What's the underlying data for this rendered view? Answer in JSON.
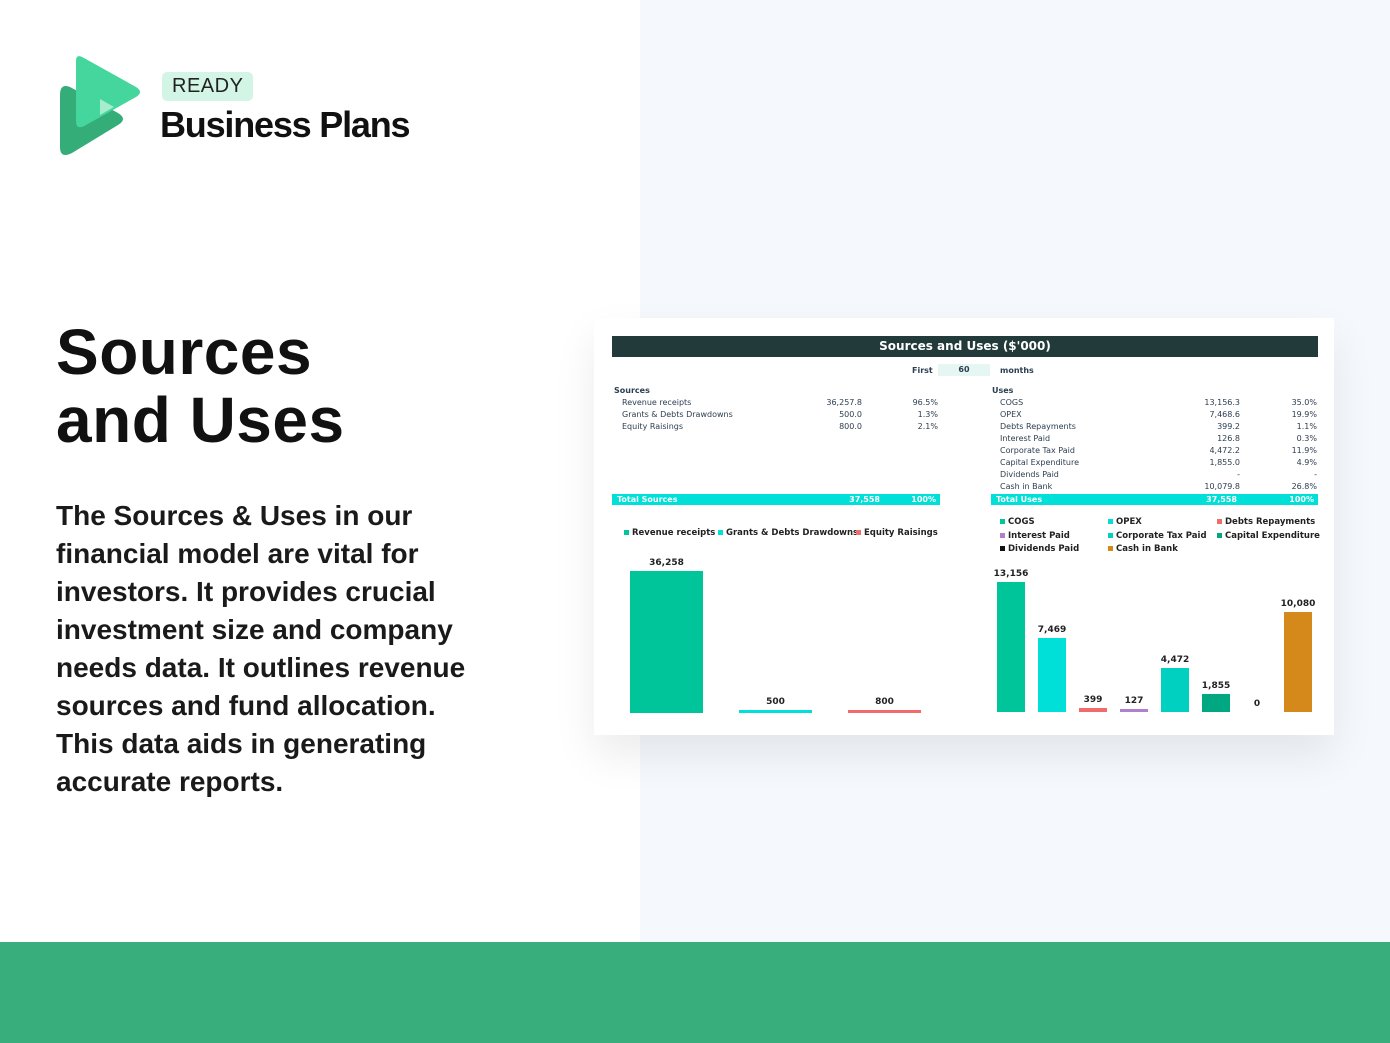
{
  "brand": {
    "badge": "READY",
    "name": "Business Plans"
  },
  "heading": {
    "line1": "Sources",
    "line2": "and Uses"
  },
  "description": "The Sources & Uses in our financial model are vital for investors. It provides crucial investment size and company needs data. It outlines revenue sources and fund allocation. This data aids in generating accurate reports.",
  "sheet": {
    "title": "Sources and Uses ($'000)",
    "period": {
      "first_label": "First",
      "value": "60",
      "unit": "months"
    },
    "sources": {
      "heading": "Sources",
      "rows": [
        {
          "label": "Revenue receipts",
          "value": "36,257.8",
          "pct": "96.5%"
        },
        {
          "label": "Grants & Debts Drawdowns",
          "value": "500.0",
          "pct": "1.3%"
        },
        {
          "label": "Equity Raisings",
          "value": "800.0",
          "pct": "2.1%"
        }
      ],
      "total": {
        "label": "Total Sources",
        "value": "37,558",
        "pct": "100%"
      }
    },
    "uses": {
      "heading": "Uses",
      "rows": [
        {
          "label": "COGS",
          "value": "13,156.3",
          "pct": "35.0%"
        },
        {
          "label": "OPEX",
          "value": "7,468.6",
          "pct": "19.9%"
        },
        {
          "label": "Debts Repayments",
          "value": "399.2",
          "pct": "1.1%"
        },
        {
          "label": "Interest Paid",
          "value": "126.8",
          "pct": "0.3%"
        },
        {
          "label": "Corporate Tax Paid",
          "value": "4,472.2",
          "pct": "11.9%"
        },
        {
          "label": "Capital Expenditure",
          "value": "1,855.0",
          "pct": "4.9%"
        },
        {
          "label": "Dividends Paid",
          "value": "-",
          "pct": "-"
        },
        {
          "label": "Cash in Bank",
          "value": "10,079.8",
          "pct": "26.8%"
        }
      ],
      "total": {
        "label": "Total Uses",
        "value": "37,558",
        "pct": "100%"
      }
    }
  },
  "chart_data": [
    {
      "type": "bar",
      "categories": [
        "Revenue receipts",
        "Grants & Debts Drawdowns",
        "Equity Raisings"
      ],
      "values": [
        36258,
        500,
        800
      ],
      "labels": [
        "36,258",
        "500",
        "800"
      ],
      "colors": [
        "#00c49a",
        "#00dfd8",
        "#f26b6b"
      ],
      "legend": "top"
    },
    {
      "type": "bar",
      "categories": [
        "COGS",
        "OPEX",
        "Debts Repayments",
        "Interest Paid",
        "Corporate Tax Paid",
        "Capital Expenditure",
        "Dividends Paid",
        "Cash in Bank"
      ],
      "values": [
        13156,
        7469,
        399,
        127,
        4472,
        1855,
        0,
        10080
      ],
      "labels": [
        "13,156",
        "7,469",
        "399",
        "127",
        "4,472",
        "1,855",
        "0",
        "10,080"
      ],
      "colors": [
        "#00c49a",
        "#00dfd8",
        "#f26b6b",
        "#b07fd0",
        "#00d0c0",
        "#00a882",
        "#111111",
        "#d4891a"
      ],
      "legend": "top"
    }
  ]
}
